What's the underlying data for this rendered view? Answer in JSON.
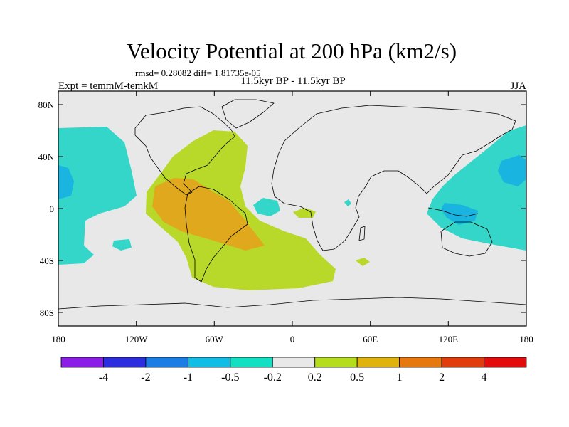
{
  "title": "Velocity Potential at 200 hPa (km2/s)",
  "stats": "rmsd= 0.28082 diff= 1.81735e-05",
  "experiment": "Expt = temmM-temkM",
  "period": "11.5kyr BP - 11.5kyr BP",
  "season": "JJA",
  "map": {
    "lon_ticks": [
      "180",
      "120W",
      "60W",
      "0",
      "60E",
      "120E",
      "180"
    ],
    "lat_ticks": [
      "80N",
      "40N",
      "0",
      "40S",
      "80S"
    ]
  },
  "colorbar": {
    "labels": [
      "-4",
      "-2",
      "-1",
      "-0.5",
      "-0.2",
      "0.2",
      "0.5",
      "1",
      "2",
      "4"
    ],
    "colors": [
      "#8a1ee6",
      "#2d2de0",
      "#1b7ee6",
      "#10bde6",
      "#12e0c3",
      "#e8e8e8",
      "#b5dd1c",
      "#e0b20c",
      "#e6780e",
      "#e03c0c",
      "#e30b0b"
    ]
  },
  "colors": {
    "background": "#e8e8e8",
    "teal": "#33d6c8",
    "blue": "#1ab4e0",
    "yellow_green": "#b8d82a",
    "orange": "#e0a81c"
  }
}
